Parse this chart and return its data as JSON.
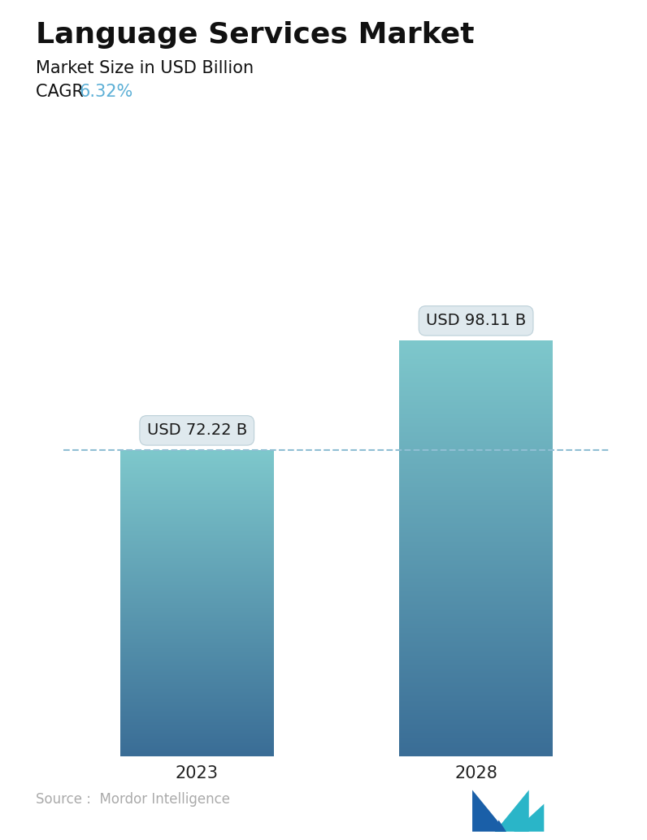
{
  "title": "Language Services Market",
  "subtitle": "Market Size in USD Billion",
  "cagr_label": "CAGR ",
  "cagr_value": "6.32%",
  "cagr_color": "#5bafd6",
  "categories": [
    "2023",
    "2028"
  ],
  "values": [
    72.22,
    98.11
  ],
  "bar_labels": [
    "USD 72.22 B",
    "USD 98.11 B"
  ],
  "bar_top_color": "#7ec8cc",
  "bar_bottom_color": "#3a6d96",
  "dashed_line_color": "#90bfd4",
  "dashed_line_value": 72.22,
  "title_fontsize": 26,
  "subtitle_fontsize": 15,
  "cagr_fontsize": 15,
  "xlabel_fontsize": 15,
  "label_fontsize": 14,
  "source_text": "Source :  Mordor Intelligence",
  "source_color": "#aaaaaa",
  "background_color": "#ffffff",
  "ylim": [
    0,
    115
  ],
  "bar_width": 0.55
}
